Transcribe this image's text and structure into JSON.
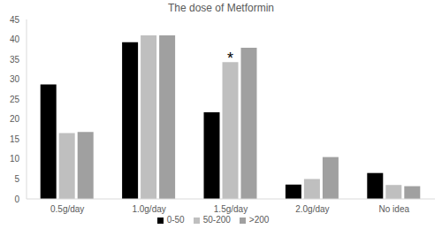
{
  "chart_data": {
    "type": "bar",
    "title": "The dose of Metformin",
    "categories": [
      "0.5g/day",
      "1.0g/day",
      "1.5g/day",
      "2.0g/day",
      "No idea"
    ],
    "series": [
      {
        "name": "0-50",
        "color": "#000000",
        "values": [
          28.7,
          39.3,
          21.7,
          3.6,
          6.5
        ]
      },
      {
        "name": "50-200",
        "color": "#bfbfbf",
        "values": [
          16.5,
          41,
          34.3,
          5,
          3.5
        ]
      },
      {
        "name": ">200",
        "color": "#a0a0a0",
        "values": [
          16.8,
          41,
          37.9,
          10.5,
          3.2
        ]
      }
    ],
    "ylim": [
      0,
      45
    ],
    "yticks": [
      0,
      5,
      10,
      15,
      20,
      25,
      30,
      35,
      40,
      45
    ],
    "grid": false,
    "legend": "bottom",
    "annotations": [
      {
        "text": "*",
        "category": "1.5g/day",
        "series": "50-200"
      }
    ]
  }
}
